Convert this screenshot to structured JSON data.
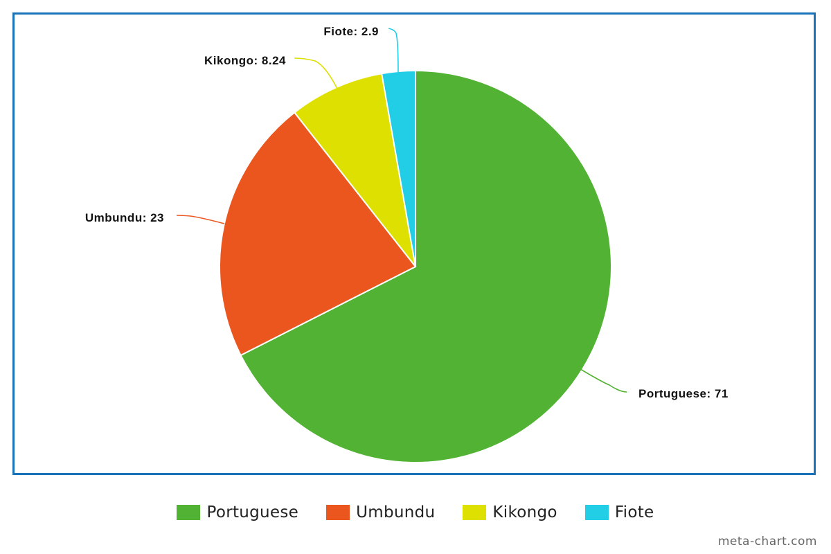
{
  "chart_data": {
    "type": "pie",
    "categories": [
      "Portuguese",
      "Umbundu",
      "Kikongo",
      "Fiote"
    ],
    "values": [
      71,
      23,
      8.24,
      2.9
    ],
    "value_labels": [
      "Portuguese: 71",
      "Umbundu: 23",
      "Kikongo: 8.24",
      "Fiote: 2.9"
    ],
    "colors": [
      "#52b233",
      "#eb561f",
      "#dde000",
      "#22cde6"
    ],
    "title": "",
    "legend_position": "bottom",
    "start_direction": "top, clockwise"
  },
  "legend": {
    "items": [
      {
        "label": "Portuguese",
        "color": "#52b233"
      },
      {
        "label": "Umbundu",
        "color": "#eb561f"
      },
      {
        "label": "Kikongo",
        "color": "#dde000"
      },
      {
        "label": "Fiote",
        "color": "#22cde6"
      }
    ]
  },
  "watermark": "meta-chart.com",
  "frame_color": "#1a73b8"
}
